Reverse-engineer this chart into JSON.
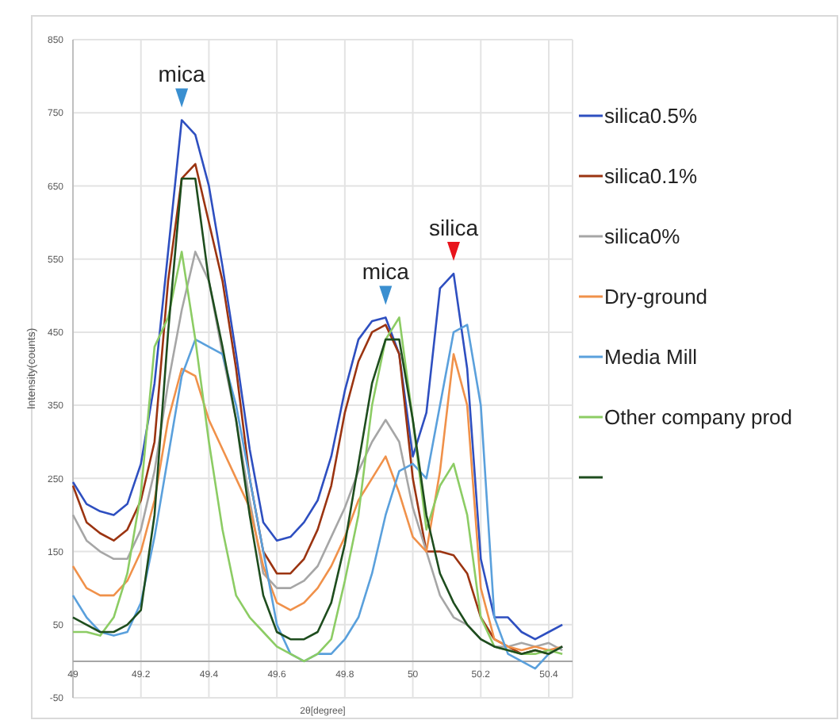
{
  "chart_data": {
    "type": "line",
    "xlabel": "2θ[degree]",
    "ylabel": "Intensity(counts)",
    "x": [
      49.0,
      49.04,
      49.08,
      49.12,
      49.16,
      49.2,
      49.24,
      49.28,
      49.32,
      49.36,
      49.4,
      49.44,
      49.48,
      49.52,
      49.56,
      49.6,
      49.64,
      49.68,
      49.72,
      49.76,
      49.8,
      49.84,
      49.88,
      49.92,
      49.96,
      50.0,
      50.04,
      50.08,
      50.12,
      50.16,
      50.2,
      50.24,
      50.28,
      50.32,
      50.36,
      50.4,
      50.44
    ],
    "xlim": [
      49,
      50.47
    ],
    "xticks": [
      49,
      49.2,
      49.4,
      49.6,
      49.8,
      50,
      50.2,
      50.4
    ],
    "ylim": [
      -50,
      850
    ],
    "yticks": [
      -50,
      50,
      150,
      250,
      350,
      450,
      550,
      650,
      750,
      850
    ],
    "grid": true,
    "legend": "right",
    "line_style": "solid",
    "marker": "none",
    "series": [
      {
        "name": "silica0.5%",
        "color": "#2e4fc0",
        "values": [
          245,
          215,
          205,
          200,
          215,
          270,
          380,
          560,
          740,
          720,
          650,
          540,
          420,
          290,
          190,
          165,
          170,
          190,
          220,
          280,
          370,
          440,
          465,
          470,
          420,
          280,
          340,
          510,
          530,
          400,
          140,
          60,
          60,
          40,
          30,
          40,
          50
        ]
      },
      {
        "name": "silica0.1%",
        "color": "#9b3411",
        "values": [
          240,
          190,
          175,
          165,
          180,
          220,
          300,
          520,
          660,
          680,
          600,
          520,
          400,
          250,
          150,
          120,
          120,
          140,
          180,
          240,
          340,
          410,
          450,
          460,
          420,
          250,
          150,
          150,
          145,
          120,
          60,
          30,
          20,
          10,
          15,
          10,
          20
        ]
      },
      {
        "name": "silica0%",
        "color": "#a6a6a6",
        "values": [
          200,
          165,
          150,
          140,
          140,
          180,
          260,
          380,
          480,
          560,
          520,
          420,
          330,
          220,
          120,
          100,
          100,
          110,
          130,
          170,
          210,
          260,
          300,
          330,
          300,
          210,
          150,
          90,
          60,
          50,
          30,
          20,
          20,
          25,
          20,
          25,
          15
        ]
      },
      {
        "name": "Dry-ground",
        "color": "#f0914a",
        "values": [
          130,
          100,
          90,
          90,
          110,
          150,
          220,
          330,
          400,
          390,
          330,
          290,
          250,
          210,
          130,
          80,
          70,
          80,
          100,
          130,
          170,
          220,
          250,
          280,
          230,
          170,
          150,
          260,
          420,
          350,
          100,
          30,
          20,
          15,
          20,
          15,
          20
        ]
      },
      {
        "name": "Media Mill",
        "color": "#5aa0dc",
        "values": [
          90,
          60,
          40,
          35,
          40,
          80,
          170,
          280,
          390,
          440,
          430,
          420,
          350,
          250,
          150,
          50,
          10,
          0,
          10,
          10,
          30,
          60,
          120,
          200,
          260,
          270,
          250,
          350,
          450,
          460,
          350,
          60,
          10,
          0,
          -10,
          10,
          20
        ]
      },
      {
        "name": "Other company prod",
        "color": "#8ccc64",
        "values": [
          40,
          40,
          35,
          60,
          120,
          230,
          430,
          470,
          560,
          440,
          300,
          180,
          90,
          60,
          40,
          20,
          10,
          0,
          10,
          30,
          110,
          200,
          350,
          440,
          470,
          330,
          180,
          240,
          270,
          200,
          60,
          20,
          15,
          10,
          10,
          15,
          10
        ]
      },
      {
        "color": "#1e4d1e",
        "values": [
          60,
          50,
          40,
          40,
          50,
          70,
          200,
          450,
          660,
          660,
          520,
          430,
          330,
          200,
          90,
          40,
          30,
          30,
          40,
          80,
          160,
          270,
          380,
          440,
          440,
          330,
          200,
          120,
          80,
          50,
          30,
          20,
          15,
          10,
          15,
          10,
          20
        ]
      }
    ],
    "annotations": [
      {
        "text": "mica",
        "x": 49.32,
        "y": 740
      },
      {
        "text": "mica",
        "x": 49.92,
        "y": 470
      },
      {
        "text": "silica",
        "x": 50.12,
        "y": 530
      }
    ]
  }
}
